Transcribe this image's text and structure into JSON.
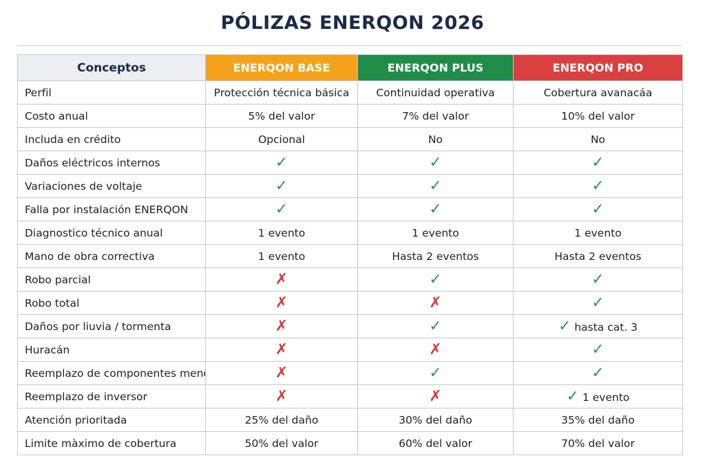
{
  "header": {
    "title": "PÓLIZAS ENERQON 2026"
  },
  "table": {
    "columns": [
      "Conceptos",
      "ENERQON BASE",
      "ENERQON PLUS",
      "ENERQON PRO"
    ],
    "rows": [
      [
        "Perfil",
        "Protección técnica básica",
        "Continuidad operativa",
        "Cobertura avanacáa"
      ],
      [
        "Costo anual",
        "5% del valor",
        "7% del valor",
        "10% del valor"
      ],
      [
        "Includa en crédito",
        "Opcional",
        "No",
        "No"
      ],
      [
        "Daños eléctricos internos",
        "✓",
        "✓",
        "✓"
      ],
      [
        "Variaciones de voltaje",
        "✓",
        "✓",
        "✓"
      ],
      [
        "Falla por instalación ENERQON",
        "✓",
        "✓",
        "✓"
      ],
      [
        "Diagnostico técnico anual",
        "1 evento",
        "1 evento",
        "1 evento"
      ],
      [
        "Mano de obra correctiva",
        "1 evento",
        "Hasta 2 eventos",
        "Hasta 2 eventos"
      ],
      [
        "Robo parcial",
        "✗",
        "✓",
        "✓"
      ],
      [
        "Robo total",
        "✗",
        "✗",
        "✓"
      ],
      [
        "Daños por liuvia / tormenta",
        "✗",
        "✓",
        "✓ hasta cat. 3"
      ],
      [
        "Huracán",
        "✗",
        "✗",
        "✓"
      ],
      [
        "Reemplazo de componentes menores",
        "✗",
        "✓",
        "✓"
      ],
      [
        "Reemplazo de inversor",
        "✗",
        "✗",
        "✓ 1 evento"
      ],
      [
        "Atención prioritada",
        "25% del daño",
        "30% del daño",
        "35% del daño"
      ],
      [
        "Limite màximo de cobertura",
        "50% del valor",
        "60% del valor",
        "70% del valor"
      ]
    ]
  }
}
